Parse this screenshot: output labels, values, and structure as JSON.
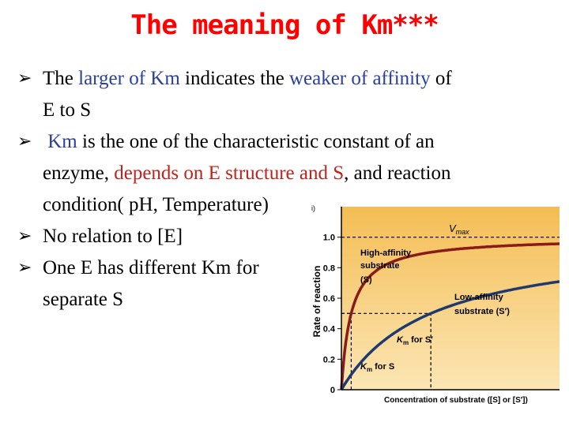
{
  "title": "The meaning of Km***",
  "bullets": {
    "b1": {
      "p1": "The ",
      "p2": "larger of Km",
      "p3": "  indicates the ",
      "p4": "weaker of affinity",
      "p5": " of",
      "line2": "E  to  S"
    },
    "b2": {
      "p1": "Km",
      "p2": " is the one of the characteristic constant of  an",
      "line2a": "enzyme, ",
      "line2b": "depends on E structure and S",
      "line2c": ", and reaction",
      "line3": "condition( pH, Temperature)"
    },
    "b3": {
      "text": "No relation to [E]"
    },
    "b4": {
      "text": "One E has different Km for",
      "line2": "separate S"
    }
  },
  "chart_data": {
    "type": "line",
    "title": "",
    "xlabel": "Concentration of substrate ([S] or [S′])",
    "ylabel": "Rate of reaction",
    "yticks": [
      "0",
      "0.2",
      "0.4",
      "0.6",
      "0.8",
      "1.0"
    ],
    "ylim": [
      0,
      1.2
    ],
    "xlim": [
      0,
      10
    ],
    "vmax": 1.0,
    "series": [
      {
        "name": "High-affinity substrate (S)",
        "color": "#8b1a1a",
        "km": 0.45
      },
      {
        "name": "Low-affinity substrate (S′)",
        "color": "#1f3a6e",
        "km": 4.1
      }
    ],
    "annotations": {
      "vmax": "V",
      "vmax_sub": "max",
      "high_l1": "High-affinity",
      "high_l2": "substrate",
      "high_l3": "(S)",
      "low_l1": "Low-affinity",
      "low_l2": "substrate (S′)",
      "km_s_k": "K",
      "km_s_sub": "m",
      "km_s_rest": " for S",
      "km_sp_k": "K",
      "km_sp_sub": "m",
      "km_sp_rest": " for S′"
    },
    "corner_mark": "i)"
  }
}
